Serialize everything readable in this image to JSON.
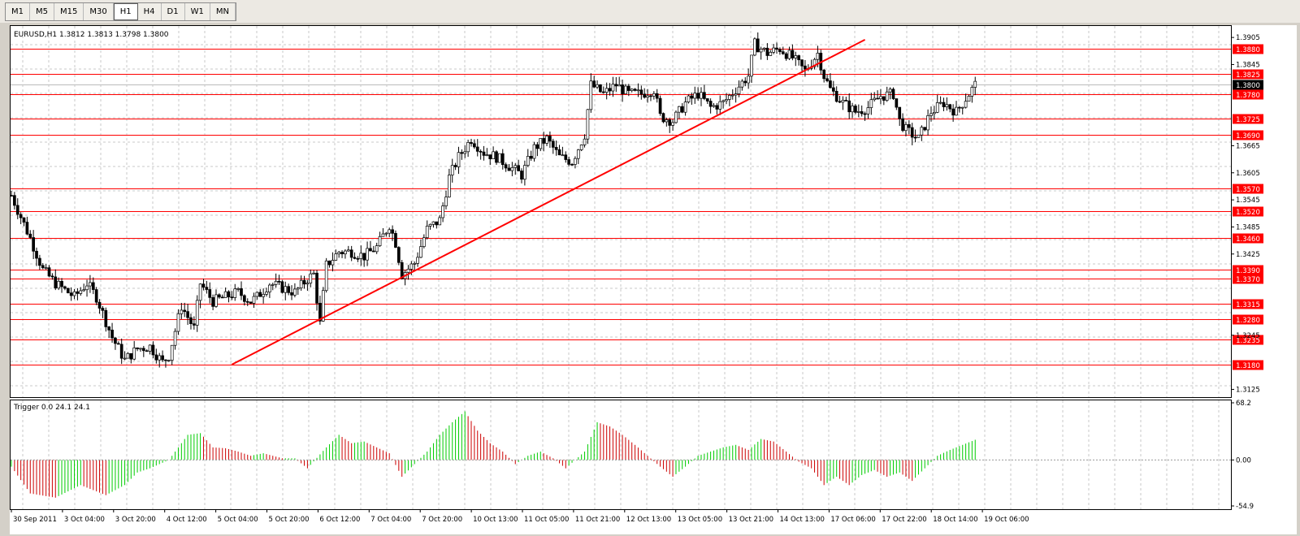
{
  "toolbar": {
    "timeframes": [
      {
        "label": "M1",
        "active": false
      },
      {
        "label": "M5",
        "active": false
      },
      {
        "label": "M15",
        "active": false
      },
      {
        "label": "M30",
        "active": false
      },
      {
        "label": "H1",
        "active": true
      },
      {
        "label": "H4",
        "active": false
      },
      {
        "label": "D1",
        "active": false
      },
      {
        "label": "W1",
        "active": false
      },
      {
        "label": "MN",
        "active": false
      }
    ]
  },
  "chart_data": {
    "type": "candlestick",
    "title": "EURUSD,H1  1.3812 1.3813 1.3798 1.3800",
    "symbol": "EURUSD",
    "timeframe": "H1",
    "ohlc_current": {
      "open": 1.3812,
      "high": 1.3813,
      "low": 1.3798,
      "close": 1.38
    },
    "price_axis": {
      "ticks": [
        "1.3905",
        "1.3845",
        "1.3665",
        "1.3605",
        "1.3545",
        "1.3485",
        "1.3425",
        "1.3245",
        "1.3125"
      ],
      "ylim": [
        1.3115,
        1.3925
      ]
    },
    "current_price_label": "1.3800",
    "horizontal_levels": [
      1.388,
      1.3825,
      1.378,
      1.3725,
      1.369,
      1.357,
      1.352,
      1.346,
      1.339,
      1.337,
      1.3315,
      1.328,
      1.3235,
      1.318
    ],
    "level_labels": [
      "1.3880",
      "1.3825",
      "1.3780",
      "1.3725",
      "1.3690",
      "1.3570",
      "1.3520",
      "1.3460",
      "1.3390",
      "1.3370",
      "1.3315",
      "1.3280",
      "1.3235",
      "1.3180"
    ],
    "time_axis": [
      "30 Sep 2011",
      "3 Oct 04:00",
      "3 Oct 20:00",
      "4 Oct 12:00",
      "5 Oct 04:00",
      "5 Oct 20:00",
      "6 Oct 12:00",
      "7 Oct 04:00",
      "7 Oct 20:00",
      "10 Oct 13:00",
      "11 Oct 05:00",
      "11 Oct 21:00",
      "12 Oct 13:00",
      "13 Oct 05:00",
      "13 Oct 21:00",
      "14 Oct 13:00",
      "17 Oct 06:00",
      "17 Oct 22:00",
      "18 Oct 14:00",
      "19 Oct 06:00"
    ],
    "price_path": [
      [
        0,
        1.3555
      ],
      [
        6,
        1.346
      ],
      [
        10,
        1.339
      ],
      [
        14,
        1.336
      ],
      [
        20,
        1.333
      ],
      [
        24,
        1.336
      ],
      [
        27,
        1.333
      ],
      [
        32,
        1.324
      ],
      [
        36,
        1.319
      ],
      [
        40,
        1.3215
      ],
      [
        44,
        1.322
      ],
      [
        48,
        1.3185
      ],
      [
        50,
        1.32
      ],
      [
        54,
        1.331
      ],
      [
        58,
        1.326
      ],
      [
        60,
        1.336
      ],
      [
        64,
        1.332
      ],
      [
        68,
        1.333
      ],
      [
        72,
        1.334
      ],
      [
        76,
        1.332
      ],
      [
        78,
        1.333
      ],
      [
        82,
        1.336
      ],
      [
        86,
        1.335
      ],
      [
        90,
        1.334
      ],
      [
        94,
        1.337
      ],
      [
        96,
        1.338
      ],
      [
        98,
        1.327
      ],
      [
        100,
        1.34
      ],
      [
        104,
        1.343
      ],
      [
        108,
        1.343
      ],
      [
        112,
        1.342
      ],
      [
        116,
        1.344
      ],
      [
        120,
        1.349
      ],
      [
        122,
        1.345
      ],
      [
        124,
        1.338
      ],
      [
        128,
        1.3405
      ],
      [
        132,
        1.348
      ],
      [
        136,
        1.35
      ],
      [
        139,
        1.3595
      ],
      [
        142,
        1.364
      ],
      [
        146,
        1.368
      ],
      [
        150,
        1.365
      ],
      [
        154,
        1.364
      ],
      [
        158,
        1.362
      ],
      [
        162,
        1.36
      ],
      [
        166,
        1.366
      ],
      [
        170,
        1.368
      ],
      [
        174,
        1.364
      ],
      [
        178,
        1.363
      ],
      [
        182,
        1.369
      ],
      [
        184,
        1.38
      ],
      [
        188,
        1.378
      ],
      [
        192,
        1.38
      ],
      [
        196,
        1.378
      ],
      [
        200,
        1.378
      ],
      [
        204,
        1.379
      ],
      [
        206,
        1.373
      ],
      [
        210,
        1.372
      ],
      [
        214,
        1.376
      ],
      [
        218,
        1.378
      ],
      [
        222,
        1.375
      ],
      [
        226,
        1.376
      ],
      [
        230,
        1.379
      ],
      [
        234,
        1.382
      ],
      [
        236,
        1.389
      ],
      [
        240,
        1.387
      ],
      [
        244,
        1.388
      ],
      [
        248,
        1.386
      ],
      [
        252,
        1.383
      ],
      [
        256,
        1.387
      ],
      [
        258,
        1.382
      ],
      [
        260,
        1.379
      ],
      [
        264,
        1.376
      ],
      [
        268,
        1.374
      ],
      [
        272,
        1.375
      ],
      [
        276,
        1.3775
      ],
      [
        280,
        1.378
      ],
      [
        282,
        1.372
      ],
      [
        284,
        1.37
      ],
      [
        288,
        1.368
      ],
      [
        292,
        1.374
      ],
      [
        296,
        1.376
      ],
      [
        300,
        1.374
      ],
      [
        304,
        1.378
      ],
      [
        306,
        1.38
      ]
    ],
    "trendline": {
      "from": [
        70,
        1.318
      ],
      "to": [
        271,
        1.39
      ]
    },
    "indicator": {
      "name": "Trigger",
      "label": "Trigger 0.0 24.1 24.1",
      "values_shown": [
        0.0,
        24.1,
        24.1
      ],
      "ylim": [
        -54.9,
        68.2
      ],
      "tick_labels": [
        "68.2",
        "0.00",
        "-54.9"
      ],
      "hist_path": [
        [
          0,
          -8
        ],
        [
          6,
          -40
        ],
        [
          14,
          -45
        ],
        [
          22,
          -30
        ],
        [
          30,
          -42
        ],
        [
          36,
          -30
        ],
        [
          40,
          -15
        ],
        [
          44,
          -10
        ],
        [
          50,
          0
        ],
        [
          56,
          30
        ],
        [
          60,
          32
        ],
        [
          64,
          15
        ],
        [
          68,
          14
        ],
        [
          72,
          10
        ],
        [
          76,
          5
        ],
        [
          80,
          8
        ],
        [
          86,
          2
        ],
        [
          90,
          2
        ],
        [
          94,
          -10
        ],
        [
          100,
          15
        ],
        [
          104,
          30
        ],
        [
          108,
          20
        ],
        [
          112,
          22
        ],
        [
          116,
          15
        ],
        [
          120,
          8
        ],
        [
          124,
          -20
        ],
        [
          128,
          -5
        ],
        [
          132,
          10
        ],
        [
          136,
          30
        ],
        [
          140,
          45
        ],
        [
          144,
          58
        ],
        [
          148,
          35
        ],
        [
          152,
          20
        ],
        [
          156,
          10
        ],
        [
          160,
          -5
        ],
        [
          164,
          5
        ],
        [
          168,
          10
        ],
        [
          172,
          2
        ],
        [
          176,
          -10
        ],
        [
          182,
          10
        ],
        [
          186,
          45
        ],
        [
          190,
          40
        ],
        [
          194,
          30
        ],
        [
          198,
          18
        ],
        [
          202,
          5
        ],
        [
          206,
          -8
        ],
        [
          210,
          -20
        ],
        [
          214,
          -8
        ],
        [
          218,
          5
        ],
        [
          222,
          10
        ],
        [
          226,
          15
        ],
        [
          230,
          18
        ],
        [
          234,
          12
        ],
        [
          238,
          25
        ],
        [
          242,
          22
        ],
        [
          246,
          10
        ],
        [
          250,
          -2
        ],
        [
          254,
          -10
        ],
        [
          258,
          -30
        ],
        [
          262,
          -20
        ],
        [
          266,
          -30
        ],
        [
          270,
          -18
        ],
        [
          274,
          -12
        ],
        [
          278,
          -20
        ],
        [
          282,
          -15
        ],
        [
          286,
          -25
        ],
        [
          290,
          -10
        ],
        [
          294,
          5
        ],
        [
          298,
          12
        ],
        [
          302,
          18
        ],
        [
          306,
          24.1
        ]
      ]
    }
  },
  "colors": {
    "bull_candle": "#ffffff",
    "bear_candle": "#000000",
    "level_line": "#ff0000",
    "trendline": "#ff0000",
    "hist_up": "#00cc00",
    "hist_down": "#cc0000",
    "grid": "#c8c8c8",
    "current_price_bg": "#000000"
  }
}
